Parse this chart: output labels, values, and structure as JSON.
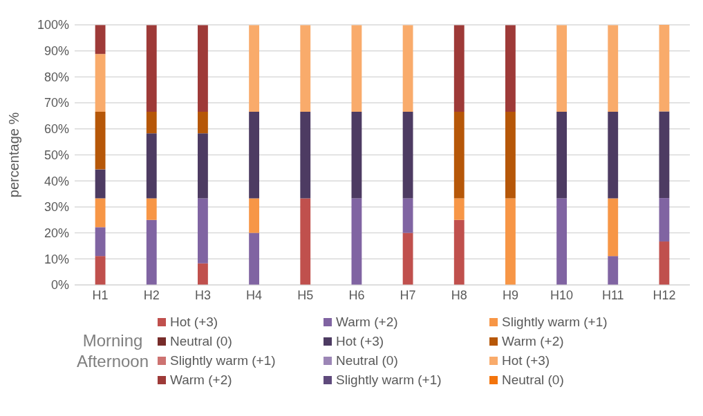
{
  "chart_data": {
    "type": "bar",
    "stacked": true,
    "ylabel": "percentage %",
    "categories": [
      "H1",
      "H2",
      "H3",
      "H4",
      "H5",
      "H6",
      "H7",
      "H8",
      "H9",
      "H10",
      "H11",
      "H12"
    ],
    "ylim": [
      0,
      100
    ],
    "yticks": [
      {
        "value": 0,
        "label": "0%"
      },
      {
        "value": 10,
        "label": "10%"
      },
      {
        "value": 20,
        "label": "20%"
      },
      {
        "value": 30,
        "label": "30%"
      },
      {
        "value": 40,
        "label": "40%"
      },
      {
        "value": 50,
        "label": "50%"
      },
      {
        "value": 60,
        "label": "60%"
      },
      {
        "value": 70,
        "label": "70%"
      },
      {
        "value": 80,
        "label": "80%"
      },
      {
        "value": 90,
        "label": "90%"
      },
      {
        "value": 100,
        "label": "100%"
      }
    ],
    "grid": "y",
    "legend": "bottom",
    "annotations": [
      "Morning",
      "Afternoon"
    ],
    "series": [
      {
        "name": "Hot (+3)",
        "color": "#c0504d",
        "values": [
          11.1,
          0,
          8.3,
          0,
          33.3,
          0,
          20,
          25,
          0,
          0,
          0,
          16.7
        ]
      },
      {
        "name": "Warm (+2)",
        "color": "#8064a2",
        "values": [
          11.1,
          25,
          25,
          20,
          0,
          33.3,
          13.3,
          0,
          0,
          33.3,
          11.1,
          16.7
        ]
      },
      {
        "name": "Slightly warm (+1)",
        "color": "#f79646",
        "values": [
          11.1,
          8.3,
          0,
          13.3,
          0,
          0,
          0,
          8.3,
          33.3,
          0,
          22.2,
          0
        ]
      },
      {
        "name": "Neutral (0)",
        "color": "#772c2a",
        "values": [
          0,
          0,
          0,
          0,
          0,
          0,
          0,
          0,
          0,
          0,
          0,
          0
        ]
      },
      {
        "name": "Hot (+3)",
        "color": "#4d3b62",
        "values": [
          11.1,
          25,
          25,
          33.3,
          33.3,
          33.3,
          33.3,
          0,
          0,
          33.3,
          33.3,
          33.3
        ]
      },
      {
        "name": "Warm (+2)",
        "color": "#b65708",
        "values": [
          22.2,
          8.3,
          8.3,
          0,
          0,
          0,
          0,
          33.3,
          33.3,
          0,
          0,
          0
        ]
      },
      {
        "name": "Slightly warm (+1)",
        "color": "#cd7371",
        "values": [
          0,
          0,
          0,
          0,
          0,
          0,
          0,
          0,
          0,
          0,
          0,
          0
        ]
      },
      {
        "name": "Neutral (0)",
        "color": "#9c86b6",
        "values": [
          0,
          0,
          0,
          0,
          0,
          0,
          0,
          0,
          0,
          0,
          0,
          0
        ]
      },
      {
        "name": "Hot (+3)",
        "color": "#f9ab6b",
        "values": [
          22.2,
          0,
          0,
          33.3,
          33.3,
          33.3,
          33.3,
          0,
          0,
          33.3,
          33.3,
          33.3
        ]
      },
      {
        "name": "Warm (+2)",
        "color": "#9e3a38",
        "values": [
          11.1,
          33.3,
          33.3,
          0,
          0,
          0,
          0,
          33.3,
          33.3,
          0,
          0,
          0
        ]
      },
      {
        "name": "Slightly warm (+1)",
        "color": "#5f4a7c",
        "values": [
          0,
          0,
          0,
          0,
          0,
          0,
          0,
          0,
          0,
          0,
          0,
          0
        ]
      },
      {
        "name": "Neutral (0)",
        "color": "#f3740c",
        "values": [
          0,
          0,
          0,
          0,
          0,
          0,
          0,
          0,
          0,
          0,
          0,
          0
        ]
      }
    ]
  }
}
